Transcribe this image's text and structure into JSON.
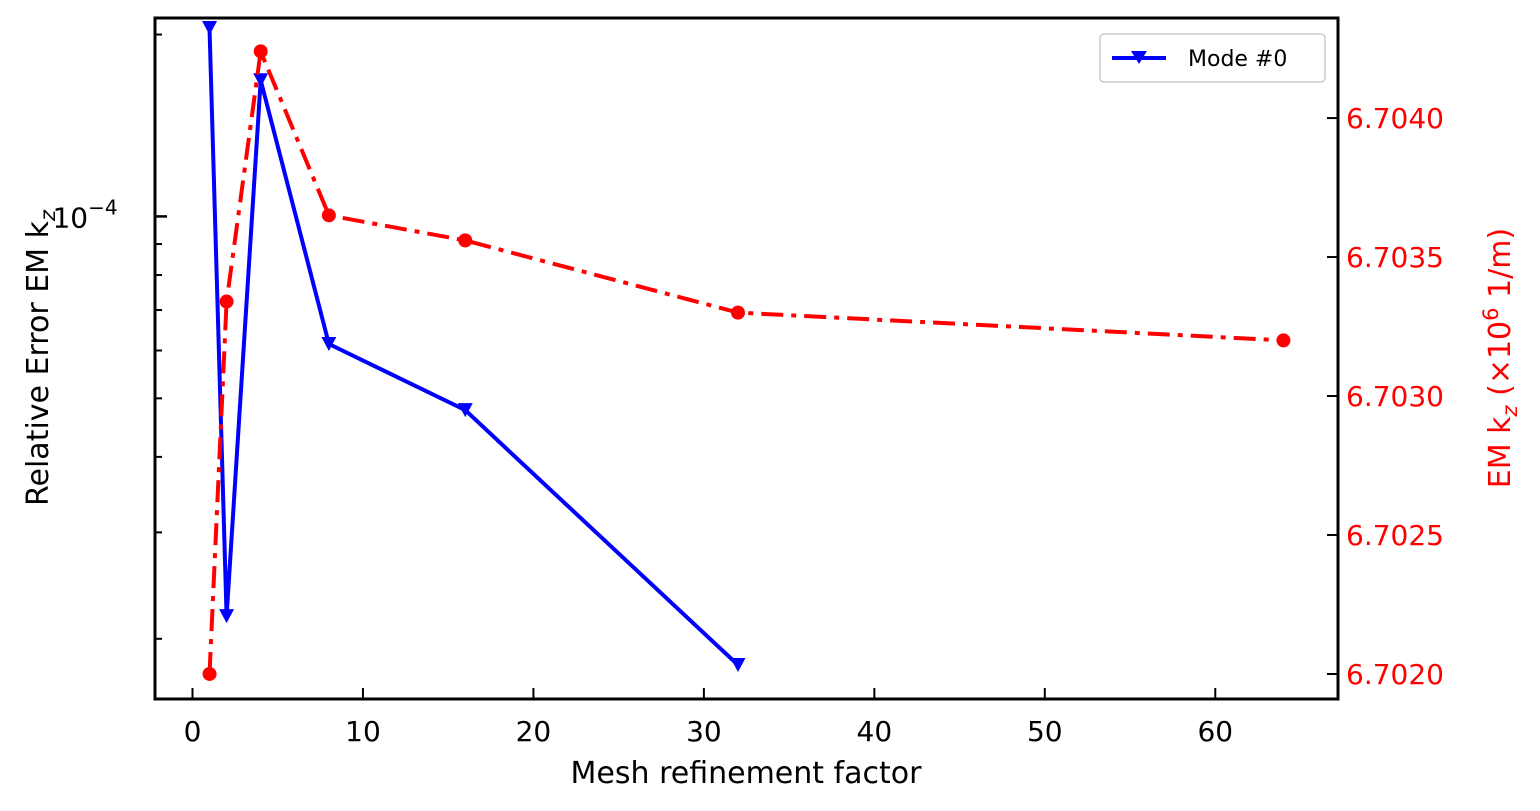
{
  "chart_data": {
    "type": "line",
    "xlabel": "Mesh refinement factor",
    "ylabel_left_prefix": "Relative Error EM k",
    "ylabel_left_sub": "z",
    "ylabel_right_prefix": "EM k",
    "ylabel_right_sub": "z",
    "ylabel_right_mid": " (×10",
    "ylabel_right_sup": "6",
    "ylabel_right_suffix": " 1/m)",
    "xlim": [
      -2.2,
      67.2
    ],
    "xticks": [
      0,
      10,
      20,
      30,
      40,
      50,
      60
    ],
    "yscale_left": "log",
    "ylim_left": [
      1.59e-05,
      0.000213
    ],
    "yticks_left_major": [
      {
        "value": 0.0001,
        "base": "10",
        "exp": "−4"
      }
    ],
    "yticks_left_minor": [
      2e-05,
      3e-05,
      4e-05,
      5e-05,
      6e-05,
      7e-05,
      8e-05,
      9e-05,
      0.0002
    ],
    "ylim_right": [
      6.70191,
      6.70436
    ],
    "yticks_right": [
      "6.7020",
      "6.7025",
      "6.7030",
      "6.7035",
      "6.7040"
    ],
    "grid": false,
    "legend_position": "top-right",
    "series": [
      {
        "name": "Mode #0",
        "axis": "left",
        "color": "#0000ff",
        "marker": "triangle-down",
        "linestyle": "solid",
        "x": [
          1,
          2,
          4,
          8,
          16,
          32
        ],
        "y": [
          0.000205,
          2.18e-05,
          0.000168,
          6.15e-05,
          4.78e-05,
          1.81e-05
        ]
      },
      {
        "name": "",
        "axis": "right",
        "color": "#ff0000",
        "marker": "circle",
        "linestyle": "dashdot",
        "x": [
          1,
          2,
          4,
          8,
          16,
          32,
          64
        ],
        "y": [
          6.702,
          6.70334,
          6.70424,
          6.70365,
          6.70356,
          6.7033,
          6.7032
        ]
      }
    ]
  }
}
